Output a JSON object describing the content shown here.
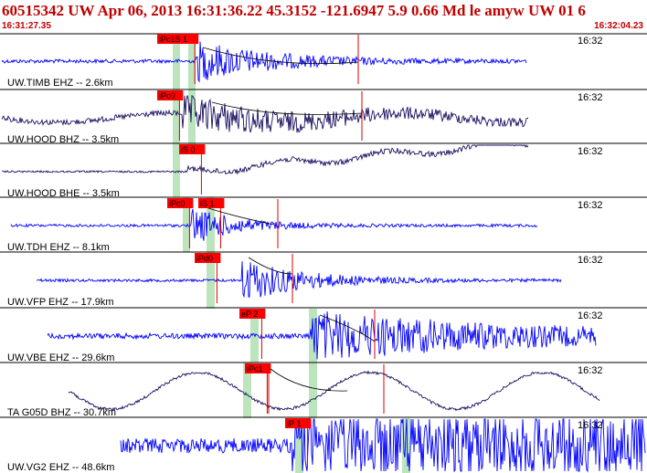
{
  "header": {
    "title": "60515342 UW Apr 06, 2013 16:31:36.22    45.3152 -121.6947  5.9 0.66 Md le amyw UW 01    6",
    "start_time": "16:31:27.35",
    "end_time": "16:32:04.23"
  },
  "colors": {
    "header_text": "#c00000",
    "trace_blue": "#0000ff",
    "trace_navy": "#1a1060",
    "pick_box": "#ff0000",
    "pick_line": "#dd0000",
    "window_green": "#bde5bd",
    "separator": "#000000"
  },
  "traces": [
    {
      "label": "UW.TIMB EHZ -- 2.6km",
      "time": "16:32",
      "pick": "iPc1S 1",
      "color": "blue"
    },
    {
      "label": "UW.HOOD BHZ -- 3.5km",
      "time": "16:32",
      "pick": "iPc0",
      "color": "navy"
    },
    {
      "label": "UW.HOOD BHE -- 3.5km",
      "time": "16:32",
      "pick": "iS 0",
      "color": "navy"
    },
    {
      "label": "UW.TDH EHZ -- 8.1km",
      "time": "16:32",
      "pick": "iPc0",
      "pick2": "iS 1",
      "color": "blue"
    },
    {
      "label": "UW.VFP EHZ -- 17.9km",
      "time": "16:32",
      "pick": "iPd0",
      "color": "blue"
    },
    {
      "label": "UW.VBE EHZ -- 29.6km",
      "time": "16:32",
      "pick": "eP 2",
      "color": "blue"
    },
    {
      "label": "TA G05D BHZ -- 30.7km",
      "time": "16:32",
      "pick": "iPc1",
      "color": "navy"
    },
    {
      "label": "UW.VG2 EHZ -- 48.6km",
      "time": "16:32",
      "pick": "iP 1",
      "color": "blue"
    }
  ]
}
